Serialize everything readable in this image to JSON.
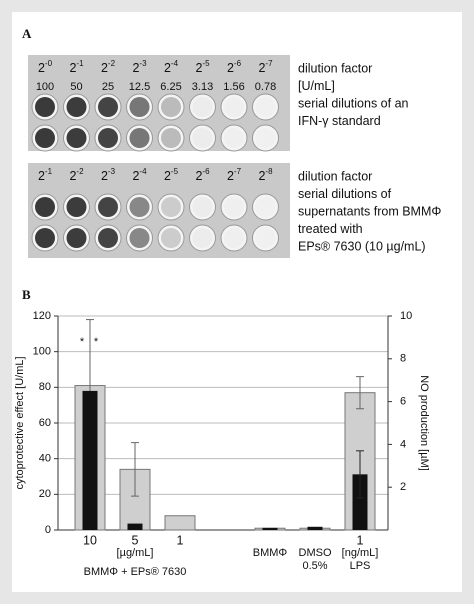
{
  "panel_a": {
    "label": "A",
    "standard": {
      "dilutions": [
        {
          "base": "2",
          "exponent": "-0"
        },
        {
          "base": "2",
          "exponent": "-1"
        },
        {
          "base": "2",
          "exponent": "-2"
        },
        {
          "base": "2",
          "exponent": "-3"
        },
        {
          "base": "2",
          "exponent": "-4"
        },
        {
          "base": "2",
          "exponent": "-5"
        },
        {
          "base": "2",
          "exponent": "-6"
        },
        {
          "base": "2",
          "exponent": "-7"
        }
      ],
      "units": [
        "100",
        "50",
        "25",
        "12.5",
        "6.25",
        "3.13",
        "1.56",
        "0.78"
      ],
      "notes": [
        "dilution factor",
        "[U/mL]",
        "serial dilutions of an",
        "IFN-γ standard"
      ]
    },
    "supernatant": {
      "dilutions": [
        {
          "base": "2",
          "exponent": "-1"
        },
        {
          "base": "2",
          "exponent": "-2"
        },
        {
          "base": "2",
          "exponent": "-3"
        },
        {
          "base": "2",
          "exponent": "-4"
        },
        {
          "base": "2",
          "exponent": "-5"
        },
        {
          "base": "2",
          "exponent": "-6"
        },
        {
          "base": "2",
          "exponent": "-7"
        },
        {
          "base": "2",
          "exponent": "-8"
        }
      ],
      "notes": [
        "dilution factor",
        "serial dilutions of",
        "supernatants from BMMΦ",
        "treated with",
        "EPs® 7630 (10 µg/mL)"
      ]
    }
  },
  "chart_data": {
    "type": "bar",
    "panel_label": "B",
    "ylabel": "cytoprotective effect  [U/mL]",
    "y2label": "NO production [µM]",
    "categories": [
      "10",
      "5",
      "1",
      null,
      "BMMΦ",
      "DMSO",
      "1"
    ],
    "annotations": [
      "[µg/mL]",
      "[ng/mL]",
      "0.5%",
      "LPS",
      "BMMΦ + EPs® 7630"
    ],
    "markers": [
      {
        "text": "*",
        "color": "#111111"
      },
      {
        "text": "*",
        "color": "#999999"
      }
    ],
    "series": [
      {
        "color": "#cfcfcf",
        "values": [
          81,
          34,
          8,
          null,
          1,
          1,
          77
        ],
        "errors": [
          37,
          15,
          null,
          null,
          null,
          null,
          9
        ]
      },
      {
        "color": "#111111",
        "axis": "y2",
        "values": [
          6.5,
          0.3,
          null,
          null,
          0.1,
          0.15,
          2.6
        ],
        "errors": [
          null,
          null,
          null,
          null,
          null,
          null,
          1.1
        ]
      }
    ],
    "ylim": [
      0,
      120
    ],
    "yticks": [
      0,
      20,
      40,
      60,
      80,
      100,
      120
    ],
    "y2lim": [
      0,
      10
    ],
    "y2ticks": [
      2,
      4,
      6,
      8,
      10
    ],
    "grid": true
  }
}
